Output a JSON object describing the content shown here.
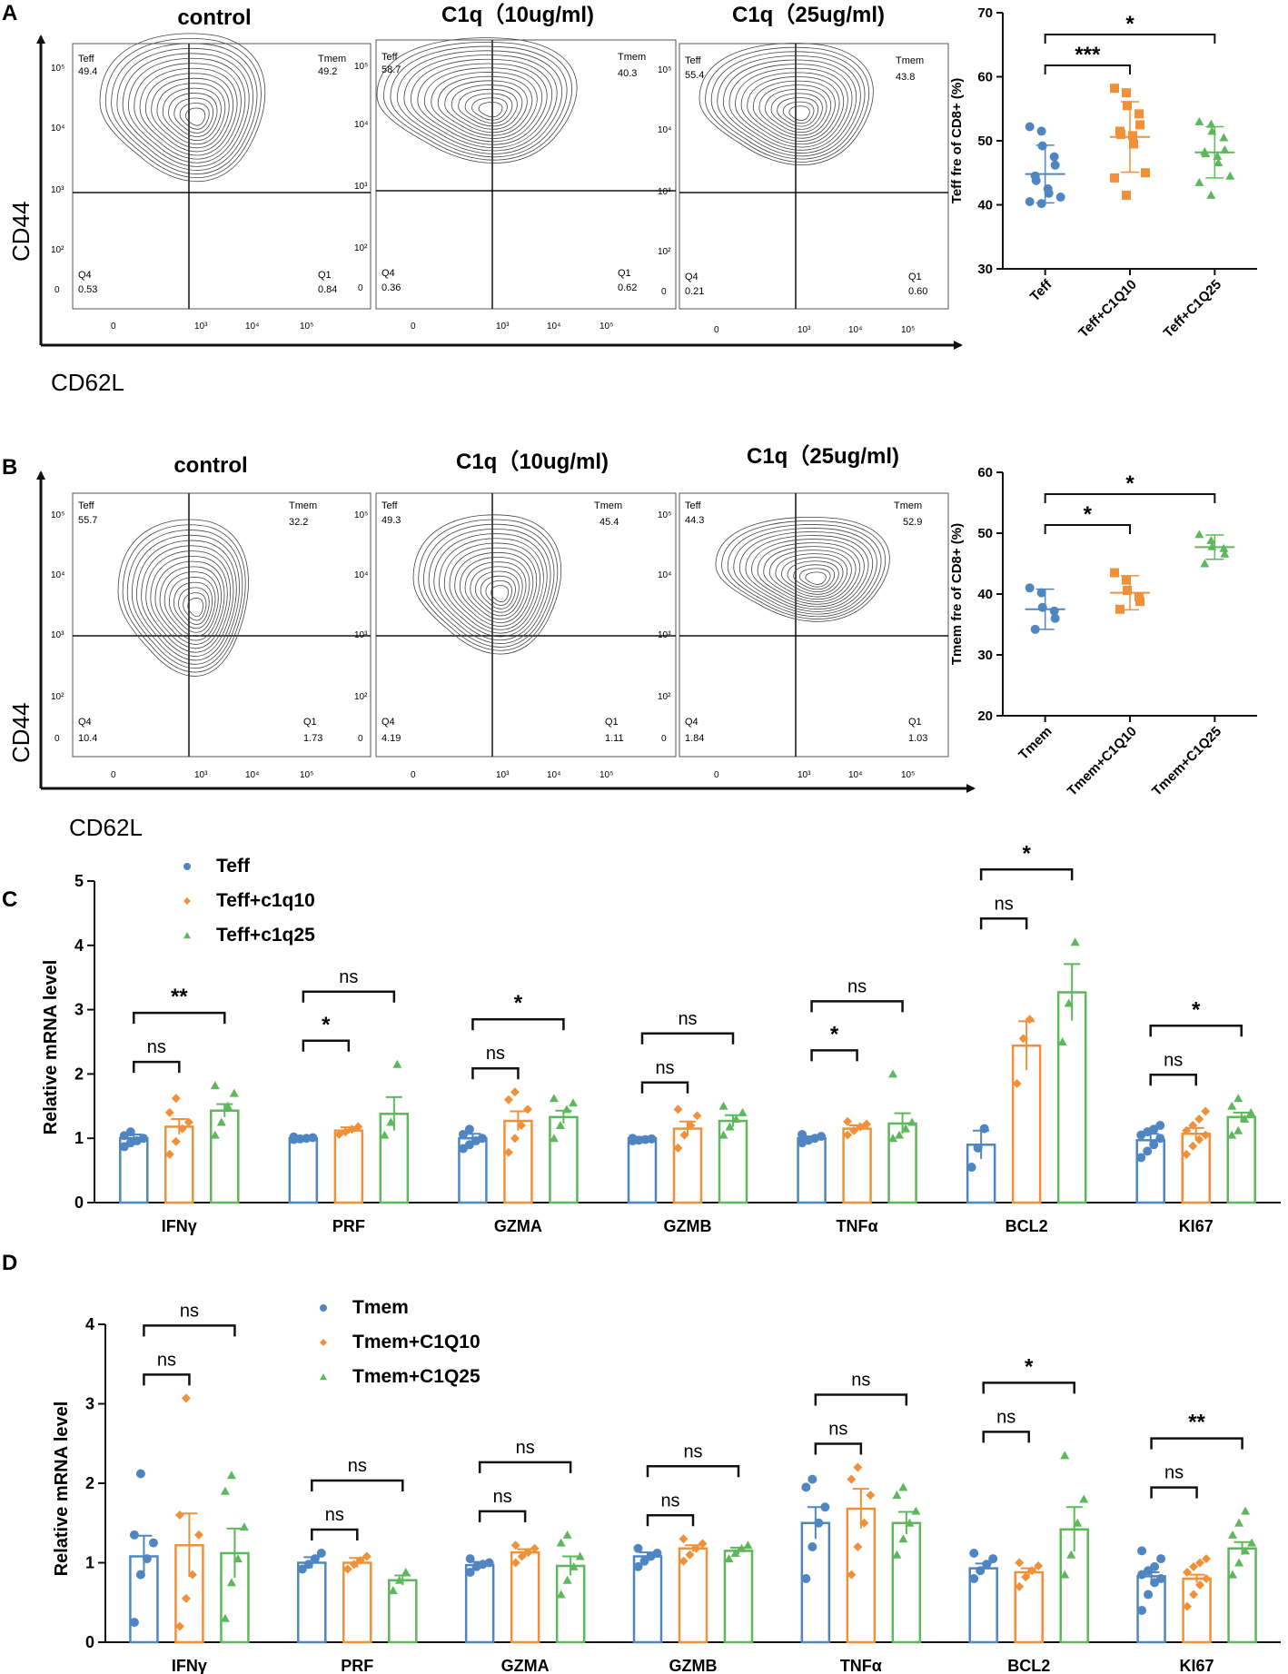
{
  "colors": {
    "blue": "#4f86c2",
    "orange": "#f0913a",
    "green": "#5db85b",
    "black": "#111111"
  },
  "panel_A": {
    "letter": "A",
    "flow_titles": [
      "control",
      "C1q（10ug/ml)",
      "C1q（25ug/ml)"
    ],
    "y_axis": "CD44",
    "x_axis": "CD62L",
    "flow_y_ticks": [
      "10⁵",
      "10⁴",
      "10³",
      "10²",
      "0"
    ],
    "flow_x_ticks": [
      "0",
      "10³",
      "10⁴",
      "10⁵"
    ],
    "quadrants": [
      {
        "tl_name": "Teff",
        "tl_val": "49.4",
        "tr_name": "Tmem",
        "tr_val": "49.2",
        "bl_name": "Q4",
        "bl_val": "0.53",
        "br_name": "Q1",
        "br_val": "0.84"
      },
      {
        "tl_name": "Teff",
        "tl_val": "58.7",
        "tr_name": "Tmem",
        "tr_val": "40.3",
        "bl_name": "Q4",
        "bl_val": "0.36",
        "br_name": "Q1",
        "br_val": "0.62"
      },
      {
        "tl_name": "Teff",
        "tl_val": "55.4",
        "tr_name": "Tmem",
        "tr_val": "43.8",
        "bl_name": "Q4",
        "bl_val": "0.21",
        "br_name": "Q1",
        "br_val": "0.60"
      }
    ]
  },
  "panel_B": {
    "letter": "B",
    "flow_titles": [
      "control",
      "C1q（10ug/ml)",
      "C1q（25ug/ml)"
    ],
    "y_axis": "CD44",
    "x_axis": "CD62L",
    "quadrants": [
      {
        "tl_name": "Teff",
        "tl_val": "55.7",
        "tr_name": "Tmem",
        "tr_val": "32.2",
        "bl_name": "Q4",
        "bl_val": "10.4",
        "br_name": "Q1",
        "br_val": "1.73"
      },
      {
        "tl_name": "Teff",
        "tl_val": "49.3",
        "tr_name": "Tmem",
        "tr_val": "45.4",
        "bl_name": "Q4",
        "bl_val": "4.19",
        "br_name": "Q1",
        "br_val": "1.11"
      },
      {
        "tl_name": "Teff",
        "tl_val": "44.3",
        "tr_name": "Tmem",
        "tr_val": "52.9",
        "bl_name": "Q4",
        "bl_val": "1.84",
        "br_name": "Q1",
        "br_val": "1.03"
      }
    ]
  },
  "panel_C": {
    "letter": "C"
  },
  "panel_D": {
    "letter": "D"
  },
  "chart_data": [
    {
      "id": "A_scatter",
      "type": "scatter",
      "ylabel": "Teff fre of CD8+ (%)",
      "ylim": [
        30,
        70
      ],
      "yticks": [
        30,
        40,
        50,
        60,
        70
      ],
      "categories": [
        "Teff",
        "Teff+C1Q10",
        "Teff+C1Q25"
      ],
      "series": [
        {
          "name": "Teff",
          "marker": "circle",
          "color": "#4f86c2",
          "mean": 44.8,
          "sd": 4.5,
          "values": [
            52.2,
            51.5,
            49.2,
            47.5,
            46.2,
            44.5,
            43.8,
            42.5,
            41.8,
            41.2,
            40.5,
            40.2
          ]
        },
        {
          "name": "Teff+C1Q10",
          "marker": "square",
          "color": "#f0913a",
          "mean": 50.6,
          "sd": 5.5,
          "values": [
            58.2,
            57.5,
            55.5,
            54.2,
            52.5,
            51.5,
            51.0,
            50.8,
            49.5,
            45.0,
            44.2,
            41.5
          ]
        },
        {
          "name": "Teff+C1Q25",
          "marker": "triangle",
          "color": "#5db85b",
          "mean": 48.2,
          "sd": 4.0,
          "values": [
            53.0,
            52.6,
            51.5,
            50.5,
            48.6,
            48.3,
            48.0,
            47.6,
            46.6,
            44.5,
            43.5,
            41.5
          ]
        }
      ],
      "significance": [
        {
          "from": 0,
          "to": 1,
          "label": "***"
        },
        {
          "from": 0,
          "to": 2,
          "label": "*"
        }
      ]
    },
    {
      "id": "B_scatter",
      "type": "scatter",
      "ylabel": "Tmem fre of CD8+ (%)",
      "ylim": [
        20,
        60
      ],
      "yticks": [
        20,
        30,
        40,
        50,
        60
      ],
      "categories": [
        "Tmem",
        "Tmem+C1Q10",
        "Tmem+C1Q25"
      ],
      "series": [
        {
          "name": "Tmem",
          "marker": "circle",
          "color": "#4f86c2",
          "mean": 37.5,
          "sd": 3.3,
          "values": [
            41.0,
            40.2,
            37.8,
            37.2,
            36.0,
            34.2
          ]
        },
        {
          "name": "Tmem+C1Q10",
          "marker": "square",
          "color": "#f0913a",
          "mean": 40.2,
          "sd": 2.8,
          "values": [
            43.5,
            42.3,
            40.6,
            39.5,
            38.8,
            37.5
          ]
        },
        {
          "name": "Tmem+C1Q25",
          "marker": "triangle",
          "color": "#5db85b",
          "mean": 47.7,
          "sd": 2.0,
          "values": [
            49.8,
            48.8,
            47.8,
            47.5,
            46.6,
            45.0
          ]
        }
      ],
      "significance": [
        {
          "from": 0,
          "to": 1,
          "label": "*"
        },
        {
          "from": 0,
          "to": 2,
          "label": "*"
        }
      ]
    },
    {
      "id": "C_bars",
      "type": "bar",
      "ylabel": "Relative mRNA level",
      "ylim": [
        0,
        5
      ],
      "yticks": [
        0,
        1,
        2,
        3,
        4,
        5
      ],
      "legend": [
        "Teff",
        "Teff+c1q10",
        "Teff+c1q25"
      ],
      "categories": [
        "IFNγ",
        "PRF",
        "GZMA",
        "GZMB",
        "TNFα",
        "BCL2",
        "KI67"
      ],
      "series": [
        {
          "name": "Teff",
          "marker": "circle",
          "color": "#4f86c2",
          "values": [
            1.0,
            1.0,
            1.0,
            1.0,
            1.0,
            0.9,
            0.97
          ],
          "errors": [
            0.06,
            0.01,
            0.07,
            0.02,
            0.03,
            0.22,
            0.1
          ],
          "points": [
            [
              0.87,
              0.93,
              0.96,
              1.0,
              1.04,
              1.1
            ],
            [
              0.98,
              0.99,
              1.0,
              1.01,
              1.02
            ],
            [
              0.84,
              0.9,
              0.96,
              1.0,
              1.06,
              1.14
            ],
            [
              0.96,
              0.97,
              0.98,
              0.99,
              1.0
            ],
            [
              0.93,
              0.97,
              1.0,
              1.03,
              1.06
            ],
            [
              0.55,
              0.85,
              1.15
            ],
            [
              0.7,
              0.8,
              0.9,
              1.0,
              1.05,
              1.1,
              1.14,
              1.2
            ]
          ]
        },
        {
          "name": "Teff+c1q10",
          "marker": "diamond",
          "color": "#f0913a",
          "values": [
            1.18,
            1.12,
            1.27,
            1.15,
            1.15,
            2.44,
            1.07
          ],
          "errors": [
            0.12,
            0.05,
            0.15,
            0.11,
            0.05,
            0.38,
            0.09
          ],
          "points": [
            [
              0.75,
              0.95,
              1.15,
              1.25,
              1.4,
              1.62
            ],
            [
              1.06,
              1.1,
              1.14,
              1.18
            ],
            [
              0.78,
              1.0,
              1.2,
              1.45,
              1.6,
              1.72
            ],
            [
              0.85,
              1.05,
              1.2,
              1.35,
              1.45
            ],
            [
              1.05,
              1.12,
              1.18,
              1.22,
              1.26
            ],
            [
              1.85,
              2.55,
              2.85
            ],
            [
              0.75,
              0.88,
              0.98,
              1.05,
              1.12,
              1.2,
              1.3,
              1.42
            ]
          ]
        },
        {
          "name": "Teff+c1q25",
          "marker": "triangle",
          "color": "#5db85b",
          "values": [
            1.43,
            1.38,
            1.33,
            1.27,
            1.23,
            3.27,
            1.33
          ],
          "errors": [
            0.1,
            0.26,
            0.1,
            0.09,
            0.16,
            0.44,
            0.07
          ],
          "points": [
            [
              1.05,
              1.25,
              1.5,
              1.7,
              1.82
            ],
            [
              1.05,
              1.25,
              2.15
            ],
            [
              1.0,
              1.2,
              1.45,
              1.55,
              1.62
            ],
            [
              1.05,
              1.18,
              1.3,
              1.4,
              1.5
            ],
            [
              1.0,
              1.05,
              1.15,
              1.25,
              2.0
            ],
            [
              2.5,
              3.1,
              4.05
            ],
            [
              1.05,
              1.12,
              1.3,
              1.4,
              1.5,
              1.62
            ]
          ]
        }
      ],
      "significance": [
        {
          "cat": 0,
          "pairs": [
            {
              "a": 0,
              "b": 1,
              "label": "ns"
            },
            {
              "a": 0,
              "b": 2,
              "label": "**"
            }
          ]
        },
        {
          "cat": 1,
          "pairs": [
            {
              "a": 0,
              "b": 1,
              "label": "*"
            },
            {
              "a": 0,
              "b": 2,
              "label": "ns"
            }
          ]
        },
        {
          "cat": 2,
          "pairs": [
            {
              "a": 0,
              "b": 1,
              "label": "ns"
            },
            {
              "a": 0,
              "b": 2,
              "label": "*"
            }
          ]
        },
        {
          "cat": 3,
          "pairs": [
            {
              "a": 0,
              "b": 1,
              "label": "ns"
            },
            {
              "a": 0,
              "b": 2,
              "label": "ns"
            }
          ]
        },
        {
          "cat": 4,
          "pairs": [
            {
              "a": 0,
              "b": 1,
              "label": "*"
            },
            {
              "a": 0,
              "b": 2,
              "label": "ns"
            }
          ]
        },
        {
          "cat": 5,
          "pairs": [
            {
              "a": 0,
              "b": 1,
              "label": "ns"
            },
            {
              "a": 0,
              "b": 2,
              "label": "*"
            }
          ]
        },
        {
          "cat": 6,
          "pairs": [
            {
              "a": 0,
              "b": 1,
              "label": "ns"
            },
            {
              "a": 0,
              "b": 2,
              "label": "*"
            }
          ]
        }
      ]
    },
    {
      "id": "D_bars",
      "type": "bar",
      "ylabel": "Relative mRNA level",
      "ylim": [
        0,
        4
      ],
      "yticks": [
        0,
        1,
        2,
        3,
        4
      ],
      "legend": [
        "Tmem",
        "Tmem+C1Q10",
        "Tmem+C1Q25"
      ],
      "categories": [
        "IFNγ",
        "PRF",
        "GZMA",
        "GZMB",
        "TNFα",
        "BCL2",
        "KI67"
      ],
      "series": [
        {
          "name": "Tmem",
          "marker": "circle",
          "color": "#4f86c2",
          "values": [
            1.08,
            1.0,
            0.97,
            1.08,
            1.5,
            0.93,
            0.83
          ],
          "errors": [
            0.26,
            0.07,
            0.04,
            0.05,
            0.2,
            0.06,
            0.05
          ],
          "points": [
            [
              0.25,
              0.85,
              1.05,
              1.25,
              1.35,
              2.12
            ],
            [
              0.92,
              0.98,
              1.05,
              1.12
            ],
            [
              0.88,
              0.95,
              0.98,
              1.0,
              1.05
            ],
            [
              0.95,
              1.02,
              1.08,
              1.12,
              1.18
            ],
            [
              0.8,
              1.2,
              1.5,
              1.7,
              1.95,
              2.05
            ],
            [
              0.8,
              0.9,
              0.98,
              1.05,
              1.12
            ],
            [
              0.4,
              0.6,
              0.75,
              0.8,
              0.85,
              0.9,
              0.95,
              1.05,
              1.15
            ]
          ]
        },
        {
          "name": "Tmem+C1Q10",
          "marker": "diamond",
          "color": "#f0913a",
          "values": [
            1.22,
            1.0,
            1.13,
            1.18,
            1.68,
            0.88,
            0.8
          ],
          "errors": [
            0.4,
            0.06,
            0.04,
            0.04,
            0.25,
            0.05,
            0.05
          ],
          "points": [
            [
              0.2,
              0.55,
              0.85,
              1.35,
              1.6,
              3.07
            ],
            [
              0.92,
              0.98,
              1.03,
              1.08
            ],
            [
              1.0,
              1.08,
              1.13,
              1.18,
              1.22
            ],
            [
              1.02,
              1.1,
              1.18,
              1.24,
              1.3
            ],
            [
              0.85,
              1.2,
              1.5,
              1.85,
              2.05,
              2.2
            ],
            [
              0.7,
              0.82,
              0.9,
              0.96,
              1.0
            ],
            [
              0.45,
              0.6,
              0.72,
              0.8,
              0.88,
              0.95,
              1.0,
              1.05
            ]
          ]
        },
        {
          "name": "Tmem+C1Q25",
          "marker": "triangle",
          "color": "#5db85b",
          "values": [
            1.12,
            0.78,
            0.96,
            1.15,
            1.5,
            1.42,
            1.18
          ],
          "errors": [
            0.31,
            0.06,
            0.12,
            0.04,
            0.14,
            0.28,
            0.08
          ],
          "points": [
            [
              0.3,
              0.75,
              1.05,
              1.45,
              1.9,
              2.1
            ],
            [
              0.65,
              0.78,
              0.88
            ],
            [
              0.6,
              0.78,
              0.95,
              1.08,
              1.25,
              1.35
            ],
            [
              1.05,
              1.12,
              1.18,
              1.22
            ],
            [
              1.1,
              1.3,
              1.5,
              1.65,
              1.85,
              1.95
            ],
            [
              0.85,
              1.1,
              1.5,
              1.8,
              2.35
            ],
            [
              0.85,
              1.0,
              1.15,
              1.25,
              1.35,
              1.5,
              1.65
            ]
          ]
        }
      ],
      "significance": [
        {
          "cat": 0,
          "pairs": [
            {
              "a": 0,
              "b": 1,
              "label": "ns"
            },
            {
              "a": 0,
              "b": 2,
              "label": "ns"
            }
          ]
        },
        {
          "cat": 1,
          "pairs": [
            {
              "a": 0,
              "b": 1,
              "label": "ns"
            },
            {
              "a": 0,
              "b": 2,
              "label": "ns"
            }
          ]
        },
        {
          "cat": 2,
          "pairs": [
            {
              "a": 0,
              "b": 1,
              "label": "ns"
            },
            {
              "a": 0,
              "b": 2,
              "label": "ns"
            }
          ]
        },
        {
          "cat": 3,
          "pairs": [
            {
              "a": 0,
              "b": 1,
              "label": "ns"
            },
            {
              "a": 0,
              "b": 2,
              "label": "ns"
            }
          ]
        },
        {
          "cat": 4,
          "pairs": [
            {
              "a": 0,
              "b": 1,
              "label": "ns"
            },
            {
              "a": 0,
              "b": 2,
              "label": "ns"
            }
          ]
        },
        {
          "cat": 5,
          "pairs": [
            {
              "a": 0,
              "b": 1,
              "label": "ns"
            },
            {
              "a": 0,
              "b": 2,
              "label": "*"
            }
          ]
        },
        {
          "cat": 6,
          "pairs": [
            {
              "a": 0,
              "b": 1,
              "label": "ns"
            },
            {
              "a": 0,
              "b": 2,
              "label": "**"
            }
          ]
        }
      ]
    }
  ]
}
